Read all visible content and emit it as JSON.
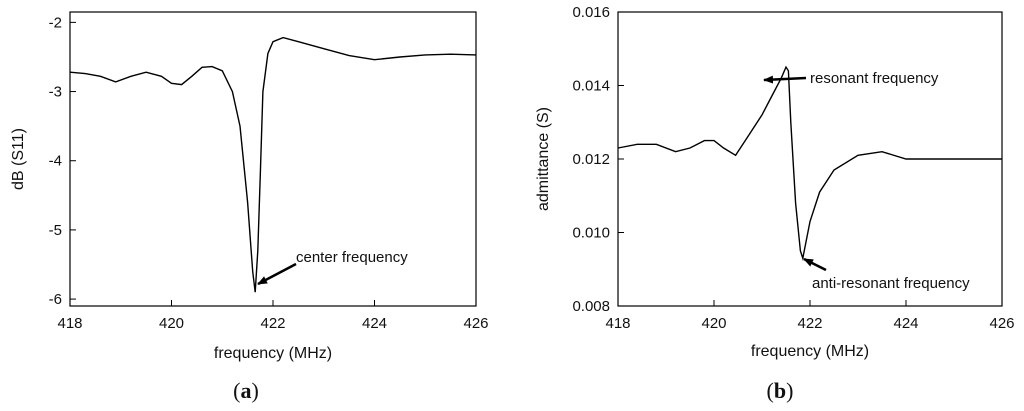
{
  "chart_data": [
    {
      "type": "line",
      "panel_label": "a",
      "xlabel": "frequency (MHz)",
      "ylabel": "dB (S11)",
      "xlim": [
        418,
        426
      ],
      "ylim": [
        -6.1,
        -1.85
      ],
      "x_ticks": [
        418,
        420,
        422,
        424,
        426
      ],
      "y_ticks": [
        -2,
        -3,
        -4,
        -5,
        -6
      ],
      "grid": false,
      "series": [
        {
          "x": [
            418.0,
            418.3,
            418.6,
            418.9,
            419.2,
            419.5,
            419.8,
            420.0,
            420.2,
            420.4,
            420.6,
            420.8,
            421.0,
            421.2,
            421.35,
            421.5,
            421.6,
            421.65,
            421.7,
            421.75,
            421.8,
            421.9,
            422.0,
            422.2,
            422.5,
            423.0,
            423.5,
            424.0,
            424.5,
            425.0,
            425.5,
            426.0
          ],
          "y": [
            -2.72,
            -2.74,
            -2.78,
            -2.86,
            -2.78,
            -2.72,
            -2.78,
            -2.88,
            -2.9,
            -2.78,
            -2.65,
            -2.64,
            -2.7,
            -3.0,
            -3.5,
            -4.6,
            -5.6,
            -5.9,
            -5.3,
            -4.2,
            -3.0,
            -2.45,
            -2.28,
            -2.22,
            -2.28,
            -2.38,
            -2.48,
            -2.54,
            -2.5,
            -2.47,
            -2.46,
            -2.47
          ]
        }
      ],
      "annotations": [
        {
          "text": "center frequency",
          "x": 421.65,
          "y": -5.9
        }
      ]
    },
    {
      "type": "line",
      "panel_label": "b",
      "xlabel": "frequency (MHz)",
      "ylabel": "admittance (S)",
      "xlim": [
        418,
        426
      ],
      "ylim": [
        0.008,
        0.016
      ],
      "x_ticks": [
        418,
        420,
        422,
        424,
        426
      ],
      "y_ticks": [
        "0.008",
        "0.010",
        "0.012",
        "0.014",
        "0.016"
      ],
      "grid": false,
      "series": [
        {
          "x": [
            418.0,
            418.4,
            418.8,
            419.2,
            419.5,
            419.8,
            420.0,
            420.2,
            420.45,
            420.7,
            421.0,
            421.2,
            421.4,
            421.5,
            421.55,
            421.6,
            421.7,
            421.8,
            421.85,
            422.0,
            422.2,
            422.5,
            423.0,
            423.5,
            424.0,
            424.5,
            425.0,
            425.5,
            426.0
          ],
          "y": [
            0.0123,
            0.0124,
            0.0124,
            0.0122,
            0.0123,
            0.0125,
            0.0125,
            0.0123,
            0.0121,
            0.0126,
            0.0132,
            0.0137,
            0.0142,
            0.0145,
            0.0144,
            0.013,
            0.0108,
            0.0095,
            0.0093,
            0.0103,
            0.0111,
            0.0117,
            0.0121,
            0.0122,
            0.012,
            0.012,
            0.012,
            0.012,
            0.012
          ]
        }
      ],
      "annotations": [
        {
          "text": "resonant frequency",
          "x": 421.55,
          "y": 0.0145
        },
        {
          "text": "anti-resonant frequency",
          "x": 421.85,
          "y": 0.0093
        }
      ]
    }
  ]
}
